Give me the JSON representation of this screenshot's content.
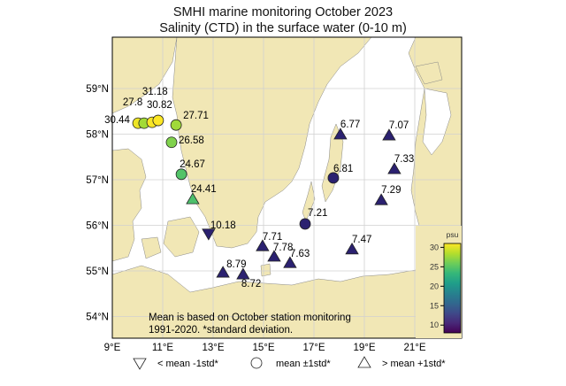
{
  "title": "SMHI marine monitoring October 2023",
  "subtitle": "Salinity (CTD) in the surface water (0-10 m)",
  "chart_data": {
    "type": "scatter",
    "map_extent": {
      "lon": [
        9,
        22.9
      ],
      "lat": [
        53.5,
        60.1
      ]
    },
    "x_ticks": [
      "9°E",
      "11°E",
      "13°E",
      "15°E",
      "17°E",
      "19°E",
      "21°E"
    ],
    "x_tick_values": [
      9,
      11,
      13,
      15,
      17,
      19,
      21
    ],
    "y_ticks": [
      "54°N",
      "55°N",
      "56°N",
      "57°N",
      "58°N",
      "59°N"
    ],
    "y_tick_values": [
      54,
      55,
      56,
      57,
      58,
      59
    ],
    "stations": [
      {
        "lon": 10.02,
        "lat": 58.24,
        "value": 30.44,
        "label": "30.44",
        "class": "mean"
      },
      {
        "lon": 10.26,
        "lat": 58.24,
        "value": 27.8,
        "label": "27.8",
        "class": "mean"
      },
      {
        "lon": 10.58,
        "lat": 58.26,
        "value": 30.82,
        "label": "30.82",
        "class": "mean"
      },
      {
        "lon": 10.82,
        "lat": 58.3,
        "value": 31.18,
        "label": "31.18",
        "class": "mean"
      },
      {
        "lon": 11.53,
        "lat": 58.2,
        "value": 27.71,
        "label": "27.71",
        "class": "mean"
      },
      {
        "lon": 11.35,
        "lat": 57.82,
        "value": 26.58,
        "label": "26.58",
        "class": "mean"
      },
      {
        "lon": 11.74,
        "lat": 57.12,
        "value": 24.67,
        "label": "24.67",
        "class": "mean"
      },
      {
        "lon": 12.19,
        "lat": 56.57,
        "value": 24.41,
        "label": "24.41",
        "class": "above"
      },
      {
        "lon": 12.82,
        "lat": 55.82,
        "value": 10.18,
        "label": "10.18",
        "class": "below"
      },
      {
        "lon": 16.65,
        "lat": 56.03,
        "value": 7.21,
        "label": "7.21",
        "class": "mean"
      },
      {
        "lon": 14.96,
        "lat": 55.54,
        "value": 7.71,
        "label": "7.71",
        "class": "above"
      },
      {
        "lon": 15.42,
        "lat": 55.31,
        "value": 7.78,
        "label": "7.78",
        "class": "above"
      },
      {
        "lon": 16.05,
        "lat": 55.17,
        "value": 7.63,
        "label": "7.63",
        "class": "above"
      },
      {
        "lon": 13.39,
        "lat": 54.96,
        "value": 8.79,
        "label": "8.79",
        "class": "above"
      },
      {
        "lon": 14.19,
        "lat": 54.92,
        "value": 8.72,
        "label": "8.72",
        "class": "above"
      },
      {
        "lon": 18.51,
        "lat": 55.47,
        "value": 7.47,
        "label": "7.47",
        "class": "above"
      },
      {
        "lon": 18.05,
        "lat": 57.99,
        "value": 6.77,
        "label": "6.77",
        "class": "above"
      },
      {
        "lon": 17.77,
        "lat": 57.04,
        "value": 6.81,
        "label": "6.81",
        "class": "mean"
      },
      {
        "lon": 19.98,
        "lat": 57.97,
        "value": 7.07,
        "label": "7.07",
        "class": "above"
      },
      {
        "lon": 20.19,
        "lat": 57.23,
        "value": 7.33,
        "label": "7.33",
        "class": "above"
      },
      {
        "lon": 19.67,
        "lat": 56.55,
        "value": 7.29,
        "label": "7.29",
        "class": "above"
      }
    ],
    "colorbar": {
      "label": "psu",
      "range": [
        8,
        31
      ],
      "ticks": [
        10,
        15,
        20,
        25,
        30
      ],
      "colormap": "viridis"
    },
    "note_line1": "Mean is based on October station monitoring",
    "note_line2": "1991-2020. *standard deviation.",
    "legend": [
      {
        "symbol": "triangle-down",
        "label": "< mean -1std*"
      },
      {
        "symbol": "circle",
        "label": "mean ±1std*"
      },
      {
        "symbol": "triangle-up",
        "label": "> mean +1std*"
      }
    ]
  },
  "colors": {
    "land": "#f1e7b5",
    "water": "#ffffff",
    "grid": "#d0d0d0",
    "marker_edge": "#1a1a1a"
  }
}
